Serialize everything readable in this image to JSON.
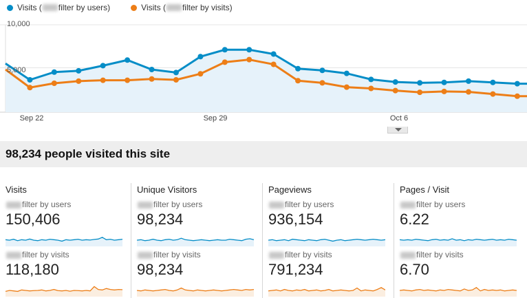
{
  "legend": {
    "users_label_prefix": "Visits (",
    "users_label_suffix": "filter by users)",
    "visits_label_prefix": "Visits (",
    "visits_label_suffix": "filter by visits)",
    "users_color": "#058dc7",
    "visits_color": "#ed7e17"
  },
  "chart_data": {
    "type": "line",
    "x": [
      "Sep 20",
      "Sep 21",
      "Sep 22",
      "Sep 23",
      "Sep 24",
      "Sep 25",
      "Sep 26",
      "Sep 27",
      "Sep 28",
      "Sep 29",
      "Sep 30",
      "Oct 1",
      "Oct 2",
      "Oct 3",
      "Oct 4",
      "Oct 5",
      "Oct 6",
      "Oct 7",
      "Oct 8",
      "Oct 9",
      "Oct 10",
      "Oct 11"
    ],
    "series": [
      {
        "name": "filter by users",
        "color": "#058dc7",
        "values": [
          5500,
          3600,
          4500,
          4650,
          5250,
          5900,
          4800,
          4450,
          6300,
          7100,
          7100,
          6600,
          4900,
          4700,
          4350,
          3650,
          3350,
          3250,
          3300,
          3450,
          3300,
          3150
        ]
      },
      {
        "name": "filter by visits",
        "color": "#ed7e17",
        "values": [
          4800,
          2700,
          3200,
          3450,
          3550,
          3550,
          3700,
          3600,
          4300,
          5650,
          5950,
          5400,
          3500,
          3250,
          2750,
          2600,
          2350,
          2150,
          2250,
          2200,
          1950,
          1700
        ]
      }
    ],
    "y_ticks": [
      "5,000",
      "10,000"
    ],
    "x_ticks": [
      "Sep 22",
      "Sep 29",
      "Oct 6"
    ],
    "ylim": [
      0,
      10000
    ],
    "area_under": "filter by users",
    "grid": "horizontal"
  },
  "summary": {
    "text": "98,234 people visited this site"
  },
  "cards": [
    {
      "title": "Visits",
      "segments": [
        {
          "label": "filter by users",
          "value": "150,406",
          "color": "#058dc7",
          "spark": [
            0.55,
            0.5,
            0.6,
            0.45,
            0.55,
            0.5,
            0.62,
            0.5,
            0.45,
            0.55,
            0.5,
            0.6,
            0.55,
            0.5,
            0.4,
            0.55,
            0.5,
            0.55,
            0.6,
            0.5,
            0.55,
            0.52,
            0.58,
            0.62,
            0.8,
            0.55,
            0.6,
            0.5,
            0.55,
            0.6
          ]
        },
        {
          "label": "filter by visits",
          "value": "118,180",
          "color": "#ed7e17",
          "spark": [
            0.4,
            0.5,
            0.45,
            0.4,
            0.55,
            0.5,
            0.45,
            0.48,
            0.5,
            0.55,
            0.45,
            0.5,
            0.6,
            0.48,
            0.45,
            0.5,
            0.42,
            0.5,
            0.48,
            0.45,
            0.5,
            0.45,
            0.9,
            0.6,
            0.55,
            0.7,
            0.6,
            0.55,
            0.6,
            0.58
          ]
        }
      ]
    },
    {
      "title": "Unique Visitors",
      "segments": [
        {
          "label": "filter by users",
          "value": "98,234",
          "color": "#058dc7",
          "spark": [
            0.5,
            0.55,
            0.45,
            0.5,
            0.6,
            0.5,
            0.45,
            0.55,
            0.6,
            0.5,
            0.55,
            0.7,
            0.55,
            0.5,
            0.45,
            0.5,
            0.55,
            0.5,
            0.45,
            0.5,
            0.55,
            0.5,
            0.5,
            0.6,
            0.55,
            0.5,
            0.45,
            0.6,
            0.65,
            0.55
          ]
        },
        {
          "label": "filter by visits",
          "value": "98,234",
          "color": "#ed7e17",
          "spark": [
            0.5,
            0.45,
            0.55,
            0.5,
            0.45,
            0.5,
            0.55,
            0.6,
            0.5,
            0.45,
            0.55,
            0.75,
            0.55,
            0.5,
            0.45,
            0.55,
            0.5,
            0.45,
            0.5,
            0.55,
            0.5,
            0.45,
            0.5,
            0.55,
            0.6,
            0.55,
            0.5,
            0.6,
            0.55,
            0.6
          ]
        }
      ]
    },
    {
      "title": "Pageviews",
      "segments": [
        {
          "label": "filter by users",
          "value": "936,154",
          "color": "#058dc7",
          "spark": [
            0.5,
            0.55,
            0.45,
            0.5,
            0.55,
            0.45,
            0.6,
            0.55,
            0.5,
            0.45,
            0.55,
            0.5,
            0.45,
            0.55,
            0.6,
            0.5,
            0.4,
            0.5,
            0.55,
            0.45,
            0.5,
            0.55,
            0.6,
            0.55,
            0.5,
            0.55,
            0.6,
            0.55,
            0.5,
            0.55
          ]
        },
        {
          "label": "filter by visits",
          "value": "791,234",
          "color": "#ed7e17",
          "spark": [
            0.45,
            0.5,
            0.55,
            0.45,
            0.6,
            0.5,
            0.45,
            0.55,
            0.5,
            0.6,
            0.45,
            0.5,
            0.55,
            0.45,
            0.5,
            0.6,
            0.45,
            0.5,
            0.55,
            0.5,
            0.45,
            0.5,
            0.75,
            0.45,
            0.55,
            0.5,
            0.45,
            0.6,
            0.8,
            0.55
          ]
        }
      ]
    },
    {
      "title": "Pages / Visit",
      "segments": [
        {
          "label": "filter by users",
          "value": "6.22",
          "color": "#058dc7",
          "spark": [
            0.55,
            0.5,
            0.55,
            0.5,
            0.6,
            0.55,
            0.5,
            0.45,
            0.55,
            0.6,
            0.5,
            0.55,
            0.5,
            0.65,
            0.5,
            0.55,
            0.45,
            0.55,
            0.5,
            0.6,
            0.55,
            0.5,
            0.55,
            0.6,
            0.5,
            0.55,
            0.5,
            0.6,
            0.55,
            0.5
          ]
        },
        {
          "label": "filter by visits",
          "value": "6.70",
          "color": "#ed7e17",
          "spark": [
            0.5,
            0.55,
            0.5,
            0.45,
            0.55,
            0.6,
            0.5,
            0.55,
            0.5,
            0.45,
            0.55,
            0.5,
            0.6,
            0.55,
            0.5,
            0.45,
            0.65,
            0.5,
            0.55,
            0.8,
            0.45,
            0.6,
            0.5,
            0.55,
            0.5,
            0.55,
            0.45,
            0.5,
            0.55,
            0.5
          ]
        }
      ]
    }
  ]
}
